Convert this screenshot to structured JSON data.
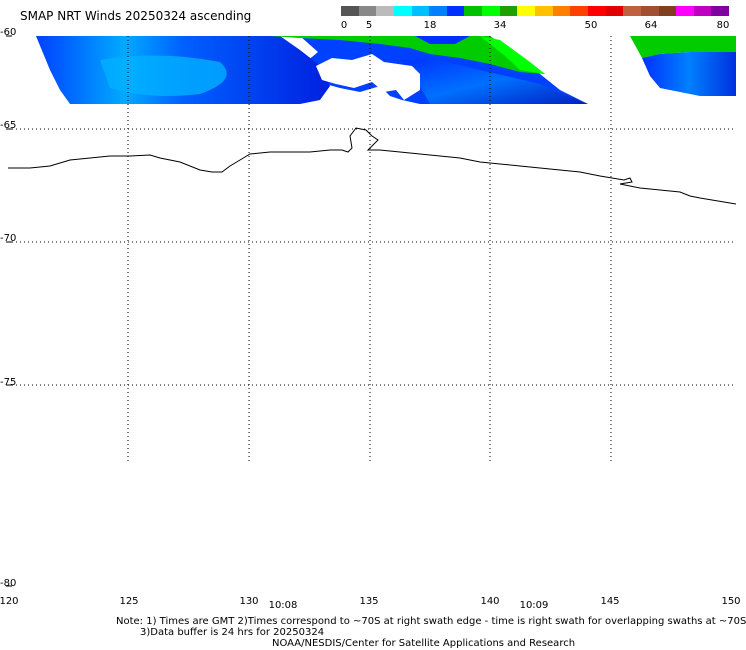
{
  "title": "SMAP NRT Winds 20250324 ascending",
  "colorbar": {
    "ticks": [
      "0",
      "5",
      "18",
      "34",
      "50",
      "64",
      "80"
    ],
    "colors": [
      "#555555",
      "#888888",
      "#bbbbbb",
      "#00ffff",
      "#00bfff",
      "#0080ff",
      "#0030ff",
      "#00c000",
      "#00ff00",
      "#20a000",
      "#ffff00",
      "#ffc000",
      "#ff8000",
      "#ff4000",
      "#ff0000",
      "#e00000",
      "#c06040",
      "#a05030",
      "#804020",
      "#ff00ff",
      "#c000c0",
      "#8000a0"
    ]
  },
  "lat_labels": [
    "-60",
    "-65",
    "-70",
    "-75",
    "-80"
  ],
  "lon_labels": [
    "120",
    "125",
    "130",
    "135",
    "140",
    "145",
    "150"
  ],
  "time_labels": [
    "10:08",
    "10:09"
  ],
  "notes": {
    "line1": "Note: 1) Times are GMT 2)Times correspond to ~70S at right swath edge - time is right swath for overlapping swaths at ~70S",
    "line2": "3)Data buffer is 24 hrs for 20250324",
    "line3": "NOAA/NESDIS/Center for Satellite Applications and Research"
  },
  "map": {
    "wind_colors": {
      "calm": "#00bfff",
      "light": "#0080ff",
      "moderate": "#0030ff",
      "strong": "#00cc00",
      "fresh": "#00ff00"
    },
    "coastline_color": "#000000",
    "grid_color": "#000000"
  }
}
